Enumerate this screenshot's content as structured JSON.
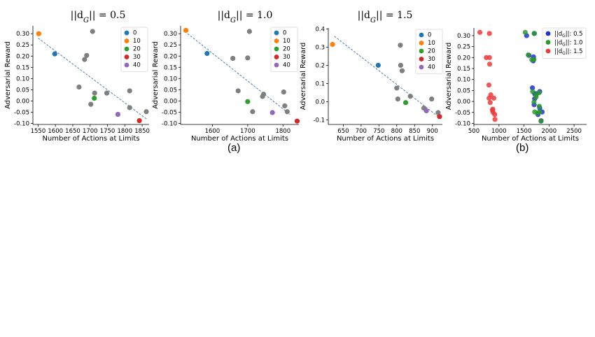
{
  "figure": {
    "captions": [
      "(a)",
      "(b)"
    ]
  },
  "chart_data": [
    {
      "type": "scatter",
      "title": "||d_G|| = 0.5",
      "xlabel": "Number of Actions at Limits",
      "ylabel": "Adversarial Reward",
      "xlim": [
        1535,
        1870
      ],
      "ylim": [
        -0.105,
        0.335
      ],
      "xticks": [
        1550,
        1600,
        1650,
        1700,
        1750,
        1800,
        1850
      ],
      "yticks": [
        -0.1,
        -0.05,
        0.0,
        0.05,
        0.1,
        0.15,
        0.2,
        0.25,
        0.3
      ],
      "grid": false,
      "legend_position": "top-right",
      "trendline": {
        "style": "dashed",
        "color": "#4a7db8",
        "x": [
          1550,
          1862
        ],
        "y": [
          0.28,
          -0.08
        ]
      },
      "series": [
        {
          "name": "0",
          "color": "#1f77b4",
          "points": [
            [
              1598,
              0.21
            ]
          ]
        },
        {
          "name": "10",
          "color": "#ff7f0e",
          "points": [
            [
              1552,
              0.3
            ]
          ]
        },
        {
          "name": "20",
          "color": "#2ca02c",
          "points": [
            [
              1712,
              0.012
            ]
          ]
        },
        {
          "name": "30",
          "color": "#d62728",
          "points": [
            [
              1842,
              -0.088
            ]
          ]
        },
        {
          "name": "40",
          "color": "#9467bd",
          "points": [
            [
              1780,
              -0.06
            ]
          ]
        },
        {
          "name": "",
          "color": "#7f7f7f",
          "points": [
            [
              1668,
              0.062
            ],
            [
              1684,
              0.185
            ],
            [
              1690,
              0.203
            ],
            [
              1702,
              -0.015
            ],
            [
              1707,
              0.31
            ],
            [
              1713,
              0.035
            ],
            [
              1748,
              0.035
            ],
            [
              1814,
              0.045
            ],
            [
              1814,
              -0.03
            ],
            [
              1862,
              -0.048
            ]
          ]
        }
      ]
    },
    {
      "type": "scatter",
      "title": "||d_G|| = 1.0",
      "xlabel": "Number of Actions at Limits",
      "ylabel": "Adversarial Reward",
      "xlim": [
        1510,
        1845
      ],
      "ylim": [
        -0.105,
        0.335
      ],
      "xticks": [
        1600,
        1700,
        1800
      ],
      "yticks": [
        -0.1,
        -0.05,
        0.0,
        0.05,
        0.1,
        0.15,
        0.2,
        0.25,
        0.3
      ],
      "grid": false,
      "legend_position": "top-right",
      "trendline": {
        "style": "dashed",
        "color": "#4a7db8",
        "x": [
          1530,
          1820
        ],
        "y": [
          0.3,
          -0.06
        ]
      },
      "series": [
        {
          "name": "0",
          "color": "#1f77b4",
          "points": [
            [
              1585,
              0.212
            ]
          ]
        },
        {
          "name": "10",
          "color": "#ff7f0e",
          "points": [
            [
              1525,
              0.315
            ]
          ]
        },
        {
          "name": "20",
          "color": "#2ca02c",
          "points": [
            [
              1700,
              -0.003
            ]
          ]
        },
        {
          "name": "30",
          "color": "#d62728",
          "points": [
            [
              1840,
              -0.09
            ]
          ]
        },
        {
          "name": "40",
          "color": "#9467bd",
          "points": [
            [
              1770,
              -0.052
            ]
          ]
        },
        {
          "name": "",
          "color": "#7f7f7f",
          "points": [
            [
              1658,
              0.19
            ],
            [
              1673,
              0.045
            ],
            [
              1700,
              0.192
            ],
            [
              1705,
              0.31
            ],
            [
              1714,
              -0.048
            ],
            [
              1742,
              0.02
            ],
            [
              1745,
              0.03
            ],
            [
              1802,
              0.04
            ],
            [
              1805,
              -0.022
            ],
            [
              1812,
              -0.048
            ]
          ]
        }
      ]
    },
    {
      "type": "scatter",
      "title": "||d_G|| = 1.5",
      "xlabel": "Number of Actions at Limits",
      "ylabel": "Adversarial Reward",
      "xlim": [
        608,
        928
      ],
      "ylim": [
        -0.125,
        0.405
      ],
      "xticks": [
        650,
        700,
        750,
        800,
        850,
        900
      ],
      "yticks": [
        -0.1,
        0.0,
        0.1,
        0.2,
        0.3,
        0.4
      ],
      "grid": false,
      "legend_position": "top-right",
      "trendline": {
        "style": "dashed",
        "color": "#4a7db8",
        "x": [
          625,
          915
        ],
        "y": [
          0.36,
          -0.08
        ]
      },
      "series": [
        {
          "name": "0",
          "color": "#1f77b4",
          "points": [
            [
              748,
              0.2
            ]
          ]
        },
        {
          "name": "10",
          "color": "#ff7f0e",
          "points": [
            [
              620,
              0.315
            ]
          ]
        },
        {
          "name": "20",
          "color": "#2ca02c",
          "points": [
            [
              825,
              -0.005
            ]
          ]
        },
        {
          "name": "30",
          "color": "#d62728",
          "points": [
            [
              920,
              -0.082
            ]
          ]
        },
        {
          "name": "40",
          "color": "#9467bd",
          "points": [
            [
              883,
              -0.05
            ]
          ]
        },
        {
          "name": "",
          "color": "#7f7f7f",
          "points": [
            [
              800,
              0.075
            ],
            [
              803,
              0.015
            ],
            [
              810,
              0.31
            ],
            [
              811,
              0.2
            ],
            [
              815,
              0.17
            ],
            [
              838,
              0.03
            ],
            [
              876,
              -0.035
            ],
            [
              898,
              0.015
            ],
            [
              916,
              -0.06
            ]
          ]
        }
      ]
    },
    {
      "type": "scatter",
      "title": "",
      "xlabel": "Number of Actions at Limits",
      "ylabel": "Adversarial Reward",
      "xlim": [
        500,
        2750
      ],
      "ylim": [
        -0.105,
        0.335
      ],
      "xticks": [
        500,
        1000,
        1500,
        2000,
        2500
      ],
      "yticks": [
        -0.1,
        -0.05,
        0.0,
        0.05,
        0.1,
        0.15,
        0.2,
        0.25,
        0.3
      ],
      "grid": false,
      "legend_position": "top-right",
      "series": [
        {
          "name": "||d_G||: 0.5",
          "color": "#1f2fd6",
          "points": [
            [
              1552,
              0.3
            ],
            [
              1598,
              0.21
            ],
            [
              1668,
              0.062
            ],
            [
              1684,
              0.185
            ],
            [
              1690,
              0.203
            ],
            [
              1702,
              -0.015
            ],
            [
              1707,
              0.31
            ],
            [
              1712,
              0.012
            ],
            [
              1713,
              0.035
            ],
            [
              1748,
              0.035
            ],
            [
              1780,
              -0.06
            ],
            [
              1814,
              0.045
            ],
            [
              1814,
              -0.03
            ],
            [
              1842,
              -0.088
            ],
            [
              1862,
              -0.048
            ]
          ]
        },
        {
          "name": "||d_G||: 1.0",
          "color": "#2a9a2a",
          "points": [
            [
              1525,
              0.315
            ],
            [
              1585,
              0.212
            ],
            [
              1658,
              0.19
            ],
            [
              1673,
              0.045
            ],
            [
              1700,
              0.192
            ],
            [
              1700,
              -0.003
            ],
            [
              1705,
              0.31
            ],
            [
              1714,
              -0.048
            ],
            [
              1742,
              0.02
            ],
            [
              1745,
              0.03
            ],
            [
              1770,
              -0.052
            ],
            [
              1802,
              0.04
            ],
            [
              1805,
              -0.022
            ],
            [
              1812,
              -0.048
            ],
            [
              1840,
              -0.09
            ]
          ]
        },
        {
          "name": "||d_G||: 1.5",
          "color": "#ee3a3a",
          "points": [
            [
              620,
              0.315
            ],
            [
              748,
              0.2
            ],
            [
              800,
              0.075
            ],
            [
              803,
              0.015
            ],
            [
              810,
              0.31
            ],
            [
              811,
              0.2
            ],
            [
              815,
              0.17
            ],
            [
              825,
              -0.005
            ],
            [
              838,
              0.03
            ],
            [
              876,
              -0.035
            ],
            [
              883,
              -0.05
            ],
            [
              898,
              0.015
            ],
            [
              916,
              -0.06
            ],
            [
              920,
              -0.082
            ],
            [
              870,
              -0.04
            ]
          ]
        }
      ]
    }
  ]
}
